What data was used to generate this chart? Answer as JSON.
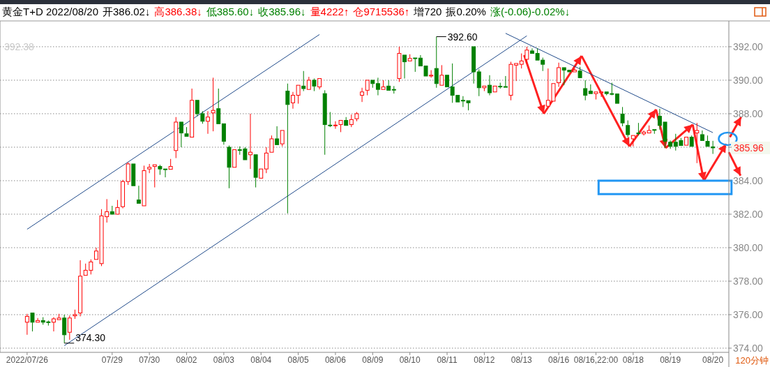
{
  "chart_data": {
    "type": "candlestick",
    "title": "黄金T+D 2022/08/20",
    "categories": [
      "2022/07/26",
      null,
      null,
      null,
      null,
      null,
      null,
      null,
      null,
      null,
      null,
      null,
      null,
      null,
      null,
      null,
      "07/29",
      null,
      null,
      null,
      null,
      null,
      null,
      "07/30",
      null,
      null,
      null,
      null,
      null,
      null,
      "08/02",
      null,
      null,
      null,
      null,
      null,
      null,
      "08/03",
      null,
      null,
      null,
      null,
      null,
      null,
      "08/04",
      null,
      null,
      null,
      null,
      null,
      null,
      "08/05",
      null,
      null,
      null,
      null,
      null,
      null,
      "08/06",
      null,
      null,
      null,
      null,
      null,
      null,
      "08/09",
      null,
      null,
      null,
      null,
      null,
      null,
      "08/10",
      null,
      null,
      null,
      null,
      null,
      null,
      "08/11",
      null,
      null,
      null,
      null,
      null,
      null,
      "08/12",
      null,
      null,
      null,
      null,
      null,
      null,
      "08/13",
      null,
      null,
      null,
      null,
      null,
      null,
      "08/16",
      null,
      null,
      null,
      null,
      null,
      null,
      "08/16,22:00",
      null,
      null,
      null,
      null,
      null,
      null,
      "08/18",
      null,
      null,
      null,
      null,
      null,
      null,
      "08/19",
      null,
      null,
      null,
      null,
      null,
      null,
      null,
      "08/20"
    ],
    "ohlc": [
      [
        375.55,
        376.05,
        374.8,
        375.9
      ],
      [
        376.1,
        376.1,
        375.0,
        375.55
      ],
      [
        375.55,
        375.8,
        375.5,
        375.65
      ],
      [
        375.65,
        375.85,
        375.4,
        375.55
      ],
      [
        375.57,
        375.65,
        375.35,
        375.55
      ],
      [
        375.55,
        375.85,
        375.0,
        375.75
      ],
      [
        375.7,
        376.05,
        375.65,
        375.8
      ],
      [
        375.8,
        376.0,
        374.3,
        374.8
      ],
      [
        374.95,
        375.95,
        374.5,
        375.8
      ],
      [
        375.93,
        376.3,
        375.75,
        376.0
      ],
      [
        376.1,
        379.25,
        375.9,
        378.3
      ],
      [
        378.35,
        379.05,
        378.3,
        378.65
      ],
      [
        378.65,
        379.3,
        378.4,
        379.15
      ],
      [
        379.3,
        380.0,
        379.25,
        379.8
      ],
      [
        379.05,
        382.3,
        378.9,
        381.9
      ],
      [
        381.85,
        382.9,
        381.5,
        382.15
      ],
      [
        382.15,
        382.5,
        382.0,
        382.0
      ],
      [
        382.0,
        382.85,
        381.95,
        382.4
      ],
      [
        382.45,
        384.05,
        382.35,
        383.95
      ],
      [
        383.95,
        385.1,
        383.75,
        385.0
      ],
      [
        385.0,
        385.0,
        383.7,
        383.7
      ],
      [
        382.85,
        383.7,
        382.6,
        382.65
      ],
      [
        382.5,
        384.9,
        382.5,
        384.6
      ],
      [
        384.7,
        385.0,
        384.45,
        384.8
      ],
      [
        384.85,
        385.0,
        383.6,
        384.95
      ],
      [
        384.85,
        384.95,
        384.35,
        384.7
      ],
      [
        384.7,
        384.7,
        384.2,
        384.68
      ],
      [
        384.68,
        385.3,
        384.65,
        384.85
      ],
      [
        385.8,
        387.8,
        385.35,
        387.5
      ],
      [
        387.5,
        387.5,
        386.0,
        386.85
      ],
      [
        386.8,
        387.2,
        386.65,
        386.65
      ],
      [
        386.6,
        389.5,
        386.6,
        388.8
      ],
      [
        388.8,
        388.8,
        387.85,
        388.0
      ],
      [
        388.0,
        388.15,
        387.4,
        387.55
      ],
      [
        387.55,
        388.15,
        386.8,
        387.8
      ],
      [
        388.05,
        390.15,
        386.95,
        388.2
      ],
      [
        388.3,
        389.5,
        387.4,
        387.4
      ],
      [
        387.4,
        387.4,
        386.15,
        386.35
      ],
      [
        386.0,
        386.1,
        383.55,
        384.8
      ],
      [
        384.8,
        385.85,
        384.8,
        385.85
      ],
      [
        385.85,
        386.05,
        385.55,
        385.83
      ],
      [
        385.9,
        386.0,
        385.2,
        385.25
      ],
      [
        385.55,
        388.0,
        384.7,
        385.7
      ],
      [
        385.55,
        385.55,
        383.6,
        384.2
      ],
      [
        384.15,
        384.7,
        384.15,
        384.7
      ],
      [
        384.7,
        386.0,
        384.45,
        385.65
      ],
      [
        385.7,
        386.7,
        385.7,
        386.5
      ],
      [
        386.5,
        387.25,
        386.15,
        386.15
      ],
      [
        386.2,
        387.0,
        386.05,
        387.0
      ],
      [
        389.35,
        389.8,
        382.05,
        388.55
      ],
      [
        388.65,
        389.3,
        388.3,
        389.1
      ],
      [
        389.1,
        389.7,
        388.6,
        389.7
      ],
      [
        389.65,
        390.55,
        389.35,
        389.5
      ],
      [
        389.45,
        390.2,
        389.45,
        390.0
      ],
      [
        390.0,
        390.1,
        389.35,
        389.65
      ],
      [
        389.6,
        390.15,
        389.45,
        390.1
      ],
      [
        389.2,
        389.4,
        385.55,
        387.35
      ],
      [
        387.32,
        388.1,
        387.2,
        387.3
      ],
      [
        387.3,
        387.55,
        387.1,
        387.32
      ],
      [
        387.35,
        387.6,
        386.9,
        387.6
      ],
      [
        387.6,
        387.8,
        387.28,
        387.3
      ],
      [
        387.35,
        387.95,
        387.2,
        387.65
      ],
      [
        387.7,
        388.1,
        387.55,
        388.0
      ],
      [
        389.1,
        389.55,
        388.7,
        389.3
      ],
      [
        389.4,
        390.0,
        389.1,
        390.0
      ],
      [
        390.0,
        390.0,
        389.55,
        389.8
      ],
      [
        389.8,
        390.15,
        389.1,
        389.45
      ],
      [
        389.45,
        390.0,
        389.4,
        389.6
      ],
      [
        389.65,
        390.0,
        389.35,
        389.4
      ],
      [
        389.45,
        389.65,
        389.2,
        389.43
      ],
      [
        390.1,
        392.0,
        389.9,
        391.6
      ],
      [
        391.5,
        391.5,
        390.1,
        391.1
      ],
      [
        391.15,
        391.55,
        391.15,
        391.3
      ],
      [
        391.33,
        391.33,
        390.5,
        391.32
      ],
      [
        391.32,
        391.5,
        390.8,
        390.85
      ],
      [
        390.85,
        390.85,
        390.2,
        390.25
      ],
      [
        390.25,
        390.6,
        390.15,
        390.3
      ],
      [
        390.7,
        392.6,
        389.55,
        389.8
      ],
      [
        389.7,
        390.9,
        389.7,
        390.3
      ],
      [
        390.3,
        390.3,
        389.55,
        389.6
      ],
      [
        389.6,
        391.0,
        388.65,
        389.1
      ],
      [
        389.1,
        389.15,
        388.7,
        388.7
      ],
      [
        388.8,
        389.05,
        388.4,
        388.78
      ],
      [
        388.78,
        388.85,
        388.2,
        388.65
      ],
      [
        392.0,
        392.0,
        389.8,
        390.5
      ],
      [
        390.5,
        390.65,
        389.05,
        389.55
      ],
      [
        389.55,
        389.65,
        389.35,
        389.65
      ],
      [
        389.7,
        390.3,
        389.1,
        389.25
      ],
      [
        389.3,
        389.7,
        389.3,
        389.65
      ],
      [
        389.64,
        389.85,
        389.5,
        389.62
      ],
      [
        389.62,
        390.25,
        389.6,
        389.6
      ],
      [
        389.1,
        391.1,
        388.8,
        390.95
      ],
      [
        390.9,
        391.0,
        389.95,
        391.0
      ],
      [
        390.95,
        391.6,
        390.7,
        391.15
      ],
      [
        391.25,
        392.0,
        391.0,
        391.8
      ],
      [
        391.75,
        391.9,
        391.6,
        391.6
      ],
      [
        391.6,
        391.9,
        391.2,
        391.2
      ],
      [
        391.2,
        391.35,
        390.55,
        390.95
      ],
      [
        388.45,
        390.7,
        388.45,
        388.8
      ],
      [
        388.75,
        389.8,
        388.75,
        389.8
      ],
      [
        389.85,
        391.05,
        389.6,
        390.75
      ],
      [
        390.75,
        390.75,
        389.7,
        390.6
      ],
      [
        390.6,
        390.65,
        390.5,
        390.5
      ],
      [
        390.5,
        390.7,
        390.45,
        390.6
      ],
      [
        390.55,
        390.8,
        390.1,
        390.15
      ],
      [
        389.5,
        390.0,
        388.8,
        389.1
      ],
      [
        389.35,
        389.75,
        389.15,
        389.2
      ],
      [
        389.2,
        389.35,
        388.85,
        389.3
      ],
      [
        389.25,
        389.35,
        389.0,
        389.3
      ],
      [
        389.3,
        389.35,
        389.1,
        389.2
      ],
      [
        389.2,
        389.85,
        389.1,
        389.18
      ],
      [
        389.18,
        389.18,
        388.55,
        388.62
      ],
      [
        387.98,
        388.4,
        387.25,
        387.45
      ],
      [
        387.3,
        387.6,
        386.6,
        386.75
      ],
      [
        386.5,
        386.75,
        386.05,
        386.7
      ],
      [
        386.85,
        387.45,
        386.7,
        386.83
      ],
      [
        386.8,
        387.0,
        386.7,
        386.9
      ],
      [
        386.85,
        387.3,
        386.8,
        387.0
      ],
      [
        387.05,
        387.1,
        386.8,
        387.03
      ],
      [
        387.85,
        388.3,
        387.05,
        387.3
      ],
      [
        387.5,
        387.5,
        385.95,
        386.35
      ],
      [
        386.3,
        386.4,
        385.9,
        386.05
      ],
      [
        386.3,
        386.8,
        385.8,
        386.05
      ],
      [
        386.4,
        386.55,
        386.1,
        386.1
      ],
      [
        386.12,
        386.6,
        386.1,
        386.6
      ],
      [
        386.6,
        386.7,
        386.05,
        386.05
      ],
      [
        386.85,
        387.45,
        385.05,
        387.0
      ],
      [
        386.75,
        387.0,
        386.35,
        386.4
      ],
      [
        386.35,
        386.7,
        386.0,
        386.05
      ],
      [
        386.02,
        386.38,
        385.6,
        385.96
      ]
    ],
    "series": [
      {
        "type": "line",
        "color": "#1f4a8a",
        "values": [
          381.1,
          null,
          null,
          null,
          null,
          null,
          null,
          null,
          null,
          null,
          null,
          null,
          null,
          null,
          null,
          null,
          null,
          null,
          null,
          null,
          null,
          null,
          null,
          null,
          null,
          null,
          null,
          null,
          null,
          null,
          null,
          null,
          null,
          null,
          null,
          null,
          null,
          null,
          null,
          null,
          null,
          null,
          null,
          null,
          null,
          null,
          null,
          null,
          null,
          null,
          null,
          null,
          null,
          null,
          null,
          392.73,
          null,
          null,
          null,
          null,
          null,
          null,
          null,
          null,
          null,
          null,
          null,
          null,
          null,
          null,
          null,
          null,
          null,
          null,
          null,
          null,
          null,
          null,
          null,
          null,
          null,
          null,
          null,
          null,
          null,
          null,
          null,
          null,
          null,
          null,
          null,
          null,
          null,
          null,
          null,
          null,
          null,
          null,
          null,
          null,
          null,
          null,
          null,
          null,
          null,
          null,
          null,
          null,
          null,
          null,
          null,
          null,
          null,
          null,
          null,
          null,
          null,
          null,
          null,
          null,
          null,
          null,
          null,
          null,
          null,
          null,
          null,
          null,
          null,
          null
        ]
      },
      {
        "type": "line",
        "color": "#1f4a8a",
        "values": [
          null,
          null,
          null,
          null,
          null,
          null,
          null,
          374.15,
          null,
          null,
          null,
          null,
          null,
          null,
          null,
          null,
          null,
          null,
          null,
          null,
          null,
          null,
          null,
          null,
          null,
          null,
          null,
          null,
          null,
          null,
          null,
          null,
          null,
          null,
          null,
          null,
          null,
          null,
          null,
          null,
          null,
          null,
          null,
          null,
          null,
          null,
          null,
          null,
          null,
          null,
          null,
          null,
          null,
          null,
          null,
          null,
          null,
          null,
          null,
          null,
          null,
          null,
          null,
          null,
          null,
          null,
          null,
          null,
          null,
          null,
          null,
          null,
          null,
          null,
          null,
          null,
          null,
          null,
          null,
          null,
          null,
          null,
          null,
          null,
          null,
          null,
          null,
          null,
          null,
          null,
          null,
          null,
          null,
          null,
          392.65,
          null,
          null,
          null,
          null,
          null,
          null,
          null,
          null,
          null,
          null,
          null,
          null,
          null,
          null,
          null,
          null,
          null,
          null,
          null,
          null,
          null,
          null,
          null,
          null,
          null,
          null,
          null,
          null,
          null,
          null,
          null,
          null,
          null,
          null,
          null
        ]
      },
      {
        "type": "line",
        "color": "#1f4a8a",
        "values": [
          null,
          null,
          null,
          null,
          null,
          null,
          null,
          null,
          null,
          null,
          null,
          null,
          null,
          null,
          null,
          null,
          null,
          null,
          null,
          null,
          null,
          null,
          null,
          null,
          null,
          null,
          null,
          null,
          null,
          null,
          null,
          null,
          null,
          null,
          null,
          null,
          null,
          null,
          null,
          null,
          null,
          null,
          null,
          null,
          null,
          null,
          null,
          null,
          null,
          null,
          null,
          null,
          null,
          null,
          null,
          null,
          null,
          null,
          null,
          null,
          null,
          null,
          null,
          null,
          null,
          null,
          null,
          null,
          null,
          null,
          null,
          null,
          null,
          null,
          null,
          null,
          null,
          null,
          null,
          null,
          null,
          null,
          null,
          null,
          null,
          null,
          null,
          null,
          null,
          null,
          392.8,
          null,
          null,
          null,
          null,
          null,
          null,
          null,
          null,
          null,
          null,
          null,
          null,
          null,
          null,
          null,
          null,
          null,
          null,
          null,
          null,
          null,
          null,
          null,
          null,
          null,
          null,
          null,
          null,
          null,
          null,
          null,
          null,
          null,
          null,
          null,
          null,
          null,
          null,
          386.87
        ]
      }
    ],
    "ylim": [
      373.75,
      393.54
    ],
    "yticks": [
      {
        "value": 374,
        "label": "374.00"
      },
      {
        "value": 376,
        "label": "376.00"
      },
      {
        "value": 378,
        "label": "378.00"
      },
      {
        "value": 380,
        "label": "380.00"
      },
      {
        "value": 382,
        "label": "382.00"
      },
      {
        "value": 384,
        "label": "384.00"
      },
      {
        "value": 386,
        "label": null
      },
      {
        "value": 388,
        "label": "388.00"
      },
      {
        "value": 390,
        "label": "390.00"
      },
      {
        "value": 392,
        "label": "392.00"
      }
    ],
    "grid": "y",
    "annotations": [
      "开386.02↓",
      "高386.38↓",
      "低385.60↓",
      "收385.96↓",
      "量4222↑",
      "仓9715536↑",
      "增720",
      "振0.20%",
      "涨(-0.06)-0.02%↓",
      "392.38",
      "392.60",
      "374.30",
      "385.96",
      "120分钟"
    ]
  }
}
